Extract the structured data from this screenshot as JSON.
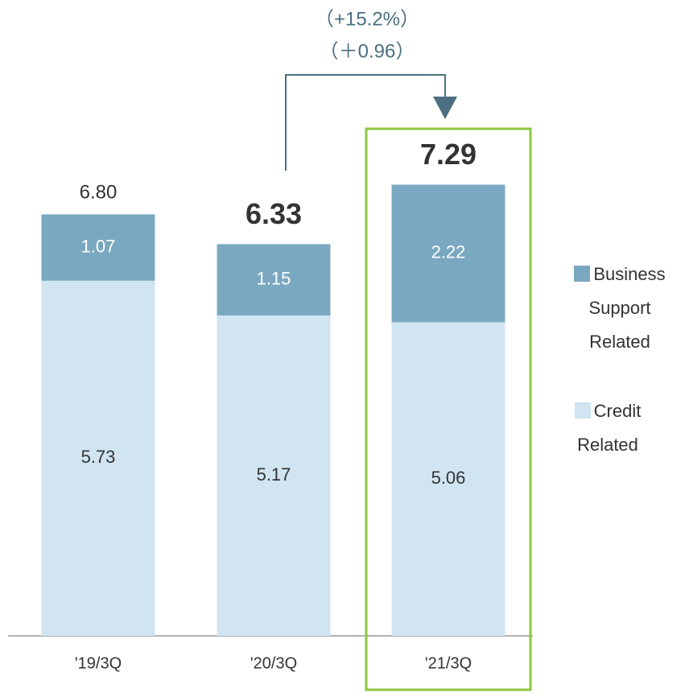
{
  "chart_data": {
    "type": "stacked_bar",
    "categories": [
      "'19/3Q",
      "'20/3Q",
      "'21/3Q"
    ],
    "series": [
      {
        "name": "Credit Related",
        "color": "#d0e4f1",
        "values": [
          5.73,
          5.17,
          5.06
        ]
      },
      {
        "name": "Business Support Related",
        "color": "#7ba8c1",
        "values": [
          1.07,
          1.15,
          2.22
        ]
      }
    ],
    "totals": {
      "values": [
        6.8,
        6.33,
        7.29
      ],
      "value_labels": [
        "6.80",
        "6.33",
        "7.29"
      ]
    },
    "annotations": [
      "（+15.2%）",
      "（＋0.96）"
    ],
    "highlight_color": "#8cc63f"
  }
}
